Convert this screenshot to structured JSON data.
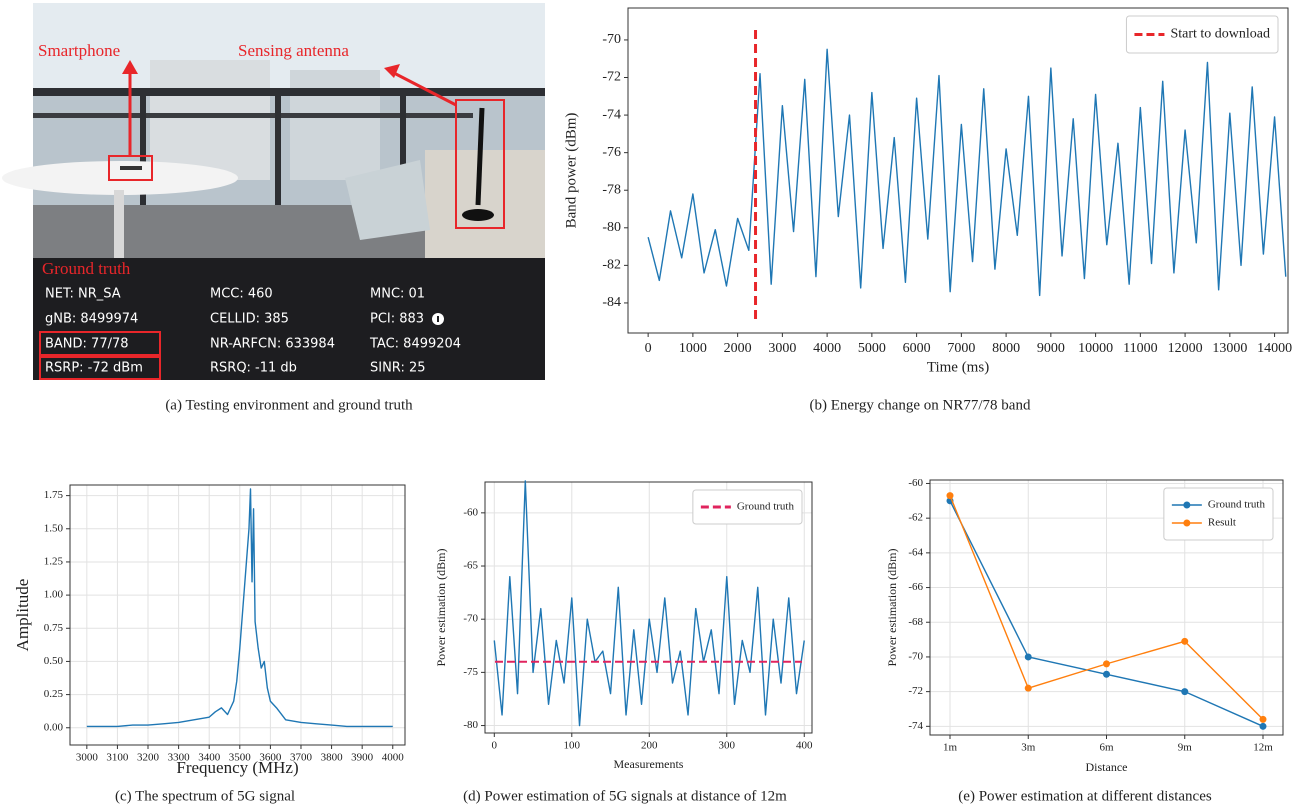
{
  "photo_panel": {
    "labels": [
      "Smartphone",
      "Sensing antenna"
    ],
    "ground_truth_title": "Ground truth",
    "table": [
      [
        "NET: NR_SA",
        "MCC: 460",
        "MNC: 01"
      ],
      [
        "gNB: 8499974",
        "CELLID: 385",
        "PCI: 883"
      ],
      [
        "BAND: 77/78",
        "NR-ARFCN: 633984",
        "TAC: 8499204"
      ],
      [
        "RSRP: -72 dBm",
        "RSRQ: -11 db",
        "SINR: 25"
      ]
    ],
    "caption": "(a)  Testing environment and ground truth"
  },
  "chart_data": [
    {
      "type": "line",
      "caption": "(b)  Energy change on NR77/78 band",
      "x_label": "Time (ms)",
      "y_label": "Band power (dBm)",
      "x": [
        0,
        250,
        500,
        750,
        1000,
        1250,
        1500,
        1750,
        2000,
        2250,
        2500,
        2750,
        3000,
        3250,
        3500,
        3750,
        4000,
        4250,
        4500,
        4750,
        5000,
        5250,
        5500,
        5750,
        6000,
        6250,
        6500,
        6750,
        7000,
        7250,
        7500,
        7750,
        8000,
        8250,
        8500,
        8750,
        9000,
        9250,
        9500,
        9750,
        10000,
        10250,
        10500,
        10750,
        11000,
        11250,
        11500,
        11750,
        12000,
        12250,
        12500,
        12750,
        13000,
        13250,
        13500,
        13750,
        14000,
        14250
      ],
      "series": [
        {
          "color": "#1f77b4",
          "values": [
            -80.5,
            -82.8,
            -79.1,
            -81.6,
            -78.2,
            -82.4,
            -80.1,
            -83.1,
            -79.5,
            -81.2,
            -71.8,
            -83.0,
            -73.5,
            -80.2,
            -72.1,
            -82.6,
            -70.5,
            -79.4,
            -74.0,
            -83.2,
            -72.8,
            -81.1,
            -75.2,
            -82.9,
            -73.1,
            -80.6,
            -71.9,
            -83.4,
            -74.5,
            -81.8,
            -72.6,
            -82.2,
            -75.8,
            -80.4,
            -73.0,
            -83.6,
            -71.5,
            -81.5,
            -74.2,
            -82.7,
            -72.9,
            -80.9,
            -75.5,
            -83.0,
            -73.6,
            -81.9,
            -72.2,
            -82.4,
            -74.8,
            -80.8,
            -71.2,
            -83.3,
            -73.9,
            -82.0,
            -72.5,
            -81.4,
            -74.1,
            -82.6
          ]
        }
      ],
      "vline": {
        "x": 2400,
        "name": "Start to download",
        "color": "#e8262a"
      },
      "xlim": [
        -450,
        14300
      ],
      "ylim": [
        -85.6,
        -68.3
      ],
      "xticks": [
        0,
        1000,
        2000,
        3000,
        4000,
        5000,
        6000,
        7000,
        8000,
        9000,
        10000,
        11000,
        12000,
        13000,
        14000
      ],
      "yticks": [
        -84,
        -82,
        -80,
        -78,
        -76,
        -74,
        -72,
        -70
      ],
      "grid": false,
      "legend": "upper right"
    },
    {
      "type": "line",
      "caption": "(c)  The spectrum of 5G signal",
      "x_label": "Frequency (MHz)",
      "y_label": "Amplitude",
      "x": [
        3000,
        3050,
        3100,
        3150,
        3200,
        3250,
        3300,
        3350,
        3400,
        3420,
        3440,
        3460,
        3480,
        3490,
        3500,
        3510,
        3520,
        3530,
        3535,
        3540,
        3545,
        3550,
        3560,
        3570,
        3580,
        3590,
        3600,
        3620,
        3650,
        3700,
        3750,
        3800,
        3850,
        3900,
        3950,
        4000
      ],
      "series": [
        {
          "color": "#1f77b4",
          "values": [
            0.01,
            0.01,
            0.01,
            0.02,
            0.02,
            0.03,
            0.04,
            0.06,
            0.08,
            0.12,
            0.15,
            0.1,
            0.2,
            0.35,
            0.6,
            0.9,
            1.2,
            1.5,
            1.8,
            1.1,
            1.65,
            0.8,
            0.6,
            0.45,
            0.5,
            0.3,
            0.2,
            0.15,
            0.06,
            0.04,
            0.03,
            0.02,
            0.01,
            0.01,
            0.01,
            0.01
          ]
        }
      ],
      "xlim": [
        2945,
        4040
      ],
      "ylim": [
        -0.13,
        1.83
      ],
      "xticks": [
        3000,
        3100,
        3200,
        3300,
        3400,
        3500,
        3600,
        3700,
        3800,
        3900,
        4000
      ],
      "yticks": [
        {
          "value": 0,
          "label": "0.00"
        },
        {
          "value": 0.25,
          "label": "0.25"
        },
        {
          "value": 0.5,
          "label": "0.50"
        },
        {
          "value": 0.75,
          "label": "0.75"
        },
        {
          "value": 1,
          "label": "1.00"
        },
        {
          "value": 1.25,
          "label": "1.25"
        },
        {
          "value": 1.5,
          "label": "1.50"
        },
        {
          "value": 1.75,
          "label": "1.75"
        }
      ],
      "grid": true
    },
    {
      "type": "line",
      "caption": "(d)  Power estimation of 5G signals at distance of 12m",
      "x_label": "Measurements",
      "y_label": "Power estimation (dBm)",
      "x": [
        0,
        10,
        20,
        30,
        40,
        50,
        60,
        70,
        80,
        90,
        100,
        110,
        120,
        130,
        140,
        150,
        160,
        170,
        180,
        190,
        200,
        210,
        220,
        230,
        240,
        250,
        260,
        270,
        280,
        290,
        300,
        310,
        320,
        330,
        340,
        350,
        360,
        370,
        380,
        390,
        400
      ],
      "series": [
        {
          "color": "#1f77b4",
          "values": [
            -72,
            -79,
            -66,
            -77,
            -57,
            -75,
            -69,
            -78,
            -72,
            -76,
            -68,
            -80,
            -70,
            -74,
            -73,
            -77,
            -67,
            -79,
            -71,
            -78,
            -70,
            -75,
            -68,
            -76,
            -73,
            -79,
            -69,
            -74,
            -71,
            -77,
            -66,
            -78,
            -72,
            -75,
            -67,
            -79,
            -70,
            -76,
            -68,
            -77,
            -72
          ]
        }
      ],
      "hline": {
        "y": -74,
        "name": "Ground truth",
        "color": "#e0245e"
      },
      "xlim": [
        -12,
        410
      ],
      "ylim": [
        -80.7,
        -57.1
      ],
      "xticks": [
        0,
        100,
        200,
        300,
        400
      ],
      "yticks": [
        -80,
        -75,
        -70,
        -65,
        -60
      ],
      "grid": true,
      "legend": "upper right"
    },
    {
      "type": "line",
      "caption": "(e)  Power estimation at different distances",
      "x_label": "Distance",
      "y_label": "Power estimation (dBm)",
      "categories": [
        "1m",
        "3m",
        "6m",
        "9m",
        "12m"
      ],
      "series": [
        {
          "name": "Ground truth",
          "color": "#1f77b4",
          "values": [
            -61,
            -70,
            -71,
            -72,
            -74
          ],
          "marker": true
        },
        {
          "name": "Result",
          "color": "#ff7f0e",
          "values": [
            -60.7,
            -71.8,
            -70.4,
            -69.1,
            -73.6
          ],
          "marker": true
        }
      ],
      "ylim": [
        -74.5,
        -59.8
      ],
      "yticks": [
        -74,
        -72,
        -70,
        -68,
        -66,
        -64,
        -62,
        -60
      ],
      "grid": true,
      "legend": "upper right"
    }
  ]
}
